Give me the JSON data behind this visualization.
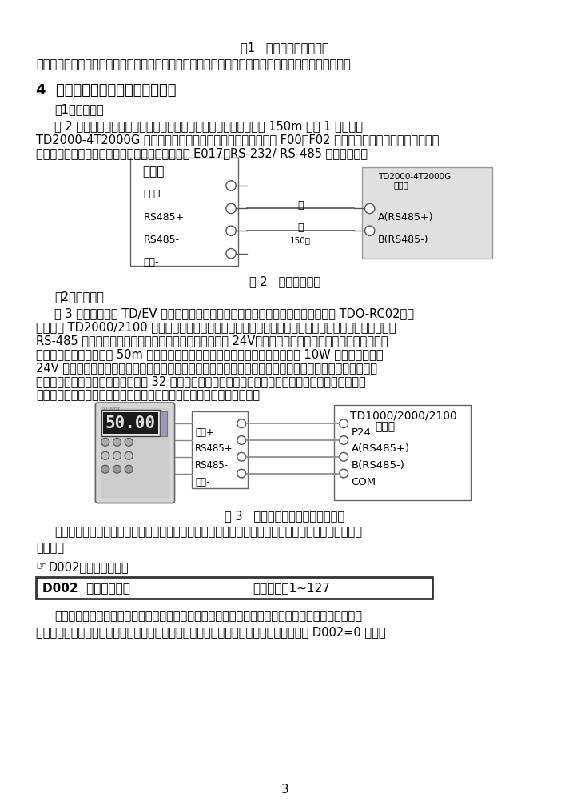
{
  "page_bg": "#ffffff",
  "title_fig1": "图1   艾默生通讯故障定位",
  "text_intro": "而对于无故障代码的通讯故障，则必须首先查看系统配置，找到故障原因所在，然后再重新配置系统。",
  "section4_title": "4  案例分析：远程操作盒无法通讯",
  "subsec1": "（1）故障现象",
  "para1_line1": "图 2 所示为某碳酸钙企业在中控室通过变频器的远程控制盒来操作 150m 外的 1 台艾默生",
  "para1_line2": "TD2000-4T2000G 变频器（研磨机电机），在接好线后，并将 F00、F02 设成了串行通讯设定和通讯控制有",
  "para1_line3": "效外，其余的均用出厂参数，但开机后变频器显示 E017（RS-232/ RS-485 通讯错误）。",
  "fig2_caption": "图 2   远程控制示意",
  "fig2_left_label": "远程盒",
  "fig2_right_label1": "TD2000-4T2000G",
  "fig2_right_label2": "变频器",
  "fig2_t1_left": "电源+",
  "fig2_t2_left": "RS485+",
  "fig2_t3_left": "RS485-",
  "fig2_t4_left": "电源-",
  "fig2_t1_right": "A(RS485+)",
  "fig2_t2_right": "B(RS485-)",
  "fig2_wire1": "橙",
  "fig2_wire2": "褐",
  "fig2_dist": "150米",
  "subsec2": "（2）分析处理",
  "para2_line1": "图 3 所示为艾默生 TD/EV 系列变频器的远程操作器连线示意，该远程操作器型号为 TDO-RC02，与",
  "para2_line2": "其变频器 TD2000/2100 系列操作器键盘的外观、基本操作方法以及显示风格等基本一致。它是采用内置",
  "para2_line3": "RS-485 通讯方式实现远程操作控制的，工作电压为直流 24V，在距离只有几十米的范围内可以采用变频",
  "para2_line4": "器内部直流电源。若超过 50m 以上或者变频器内部直流电源另有他用，可以选用 10W 左右的标准直流",
  "para2_line5": "24V 电源。由于采用通讯方式实现远程操作控制，所以该操作器的安装距离可以在数百米范围内正常工作，",
  "para2_line6": "并且通过采用不同的通讯地址对多达 32 台变频器进行远控操作。这些操作内容包括正反转运行、电动运",
  "para2_line7": "行、停机、功能码设置、功能码参数查看、运行参数查看、故障复位等。",
  "fig3_caption": "图 3   艾默生变频器远程操作器连线",
  "fig3_disp": "50.00",
  "fig3_right_label1": "TD1000/2000/2100",
  "fig3_right_label2": "变频器",
  "fig3_t1_left": "电源+",
  "fig3_t2_left": "RS485+",
  "fig3_t3_left": "RS485-",
  "fig3_t4_left": "电源-",
  "fig3_t1_right": "P24",
  "fig3_t2_right": "A(RS485+)",
  "fig3_t3_right": "B(RS485-)",
  "fig3_t4_right": "COM",
  "para3_line1": "检查变频器与远程操作盒的通讯格式是否匹配，发现两者之间的地址和通讯格式均不一致，现修改参",
  "para3_line2": "数如下：",
  "tip_symbol": "☞",
  "tip_text": "D002：从机地址设置",
  "d002_label": "D002  从机地址设置",
  "d002_range": "设定范围：1~127",
  "para4_line1": "本功能码用于设定当前操作的从机地址，实际有效设定范围为组网从机的本机号码范围，超过组网的",
  "para4_line2": "从机本机号码范围时，无法与指定的从机通讯，则远程控制盒相关控制无效。但是，即使 D002=0 与变频",
  "page_num": "3"
}
